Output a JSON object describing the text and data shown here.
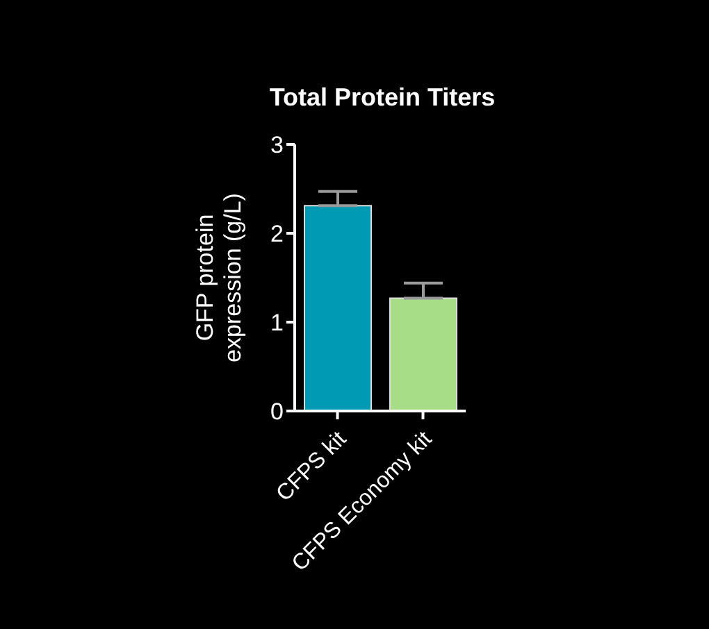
{
  "chart_data": {
    "type": "bar",
    "title": "Total Protein Titers",
    "ylabel": "GFP protein\nexpression (g/L)",
    "categories": [
      "CFPS kit",
      "CFPS Economy kit"
    ],
    "values": [
      2.31,
      1.27
    ],
    "errors": [
      [
        2.31,
        2.47
      ],
      [
        1.27,
        1.44
      ]
    ],
    "colors": [
      "#009ab5",
      "#a8dd88"
    ],
    "ylim": [
      0,
      3
    ],
    "yticks": [
      0,
      1,
      2,
      3
    ]
  }
}
